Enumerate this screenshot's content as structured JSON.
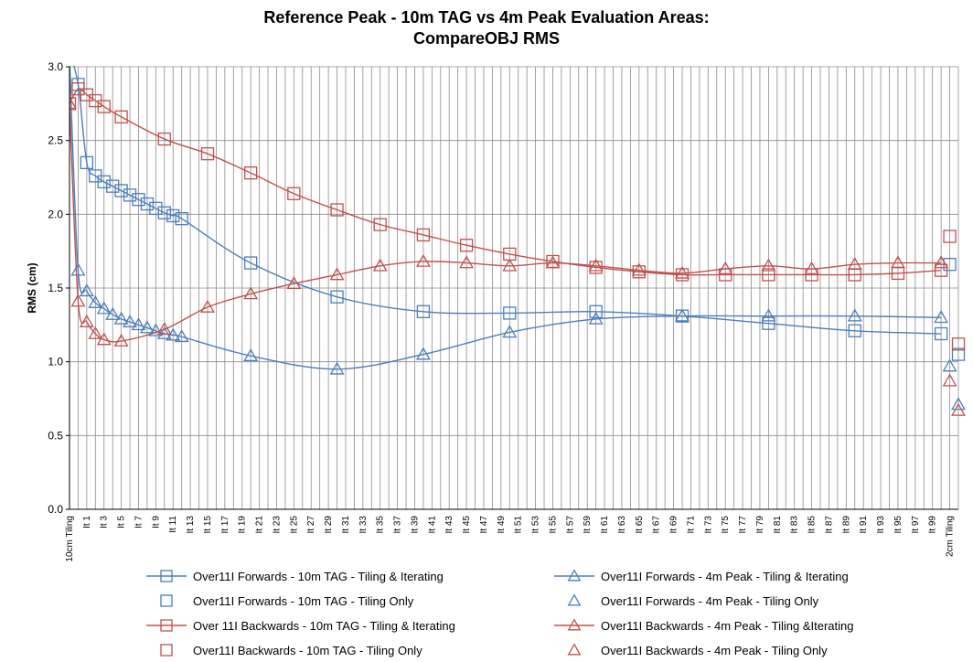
{
  "chart_data": {
    "type": "line",
    "title": "Reference Peak - 10m TAG vs 4m Peak Evaluation Areas:",
    "subtitle": "CompareOBJ RMS",
    "ylabel": "RMS (cm)",
    "ylim": [
      0,
      3
    ],
    "yticks": [
      "0.0",
      "0.5",
      "1.0",
      "1.5",
      "2.0",
      "2.5",
      "3.0"
    ],
    "grid": true,
    "legend_position": "bottom",
    "colors": {
      "blue": "#4a7ebb",
      "red": "#c0504d"
    },
    "categories": [
      "10cm Tiling",
      "It 1",
      "It 3",
      "It 5",
      "It 7",
      "It 9",
      "It 11",
      "It 13",
      "It 15",
      "It 17",
      "It 19",
      "It 21",
      "It 23",
      "It 25",
      "It 27",
      "It 29",
      "It 31",
      "It 33",
      "It 35",
      "It 37",
      "It 39",
      "It 41",
      "It 43",
      "It 45",
      "It 47",
      "It 49",
      "It 51",
      "It 53",
      "It 55",
      "It 57",
      "It 59",
      "It 61",
      "It 63",
      "It 65",
      "It 67",
      "It 69",
      "It 71",
      "It 73",
      "It 75",
      "It 77",
      "It 79",
      "It 81",
      "It 83",
      "It 85",
      "It 87",
      "It 89",
      "It 91",
      "It 93",
      "It 95",
      "It 97",
      "It 99",
      "2cm Tiling"
    ],
    "series": [
      {
        "name": "Over11I Forwards - 10m TAG - Tiling & Iterating",
        "color": "#4a7ebb",
        "marker": "square",
        "line": true,
        "x": [
          -1,
          0,
          1,
          2,
          3,
          4,
          5,
          6,
          7,
          8,
          9,
          10,
          11,
          12,
          20,
          30,
          40,
          50,
          60,
          70,
          80,
          90,
          100
        ],
        "y": [
          3.1,
          2.88,
          2.35,
          2.26,
          2.22,
          2.19,
          2.16,
          2.13,
          2.1,
          2.07,
          2.04,
          2.01,
          1.99,
          1.97,
          1.67,
          1.44,
          1.34,
          1.33,
          1.34,
          1.31,
          1.26,
          1.21,
          1.19
        ]
      },
      {
        "name": "Over11I Forwards - 10m TAG - Tiling Only",
        "color": "#4a7ebb",
        "marker": "square",
        "line": false,
        "x": [
          101,
          102
        ],
        "y": [
          1.66,
          1.05
        ]
      },
      {
        "name": "Over11I Forwards - 4m Peak - Tiling & Iterating",
        "color": "#4a7ebb",
        "marker": "triangle",
        "line": true,
        "x": [
          -1,
          0,
          1,
          2,
          3,
          4,
          5,
          6,
          7,
          8,
          9,
          10,
          11,
          12,
          20,
          30,
          40,
          50,
          60,
          70,
          80,
          90,
          100
        ],
        "y": [
          3.05,
          1.62,
          1.48,
          1.4,
          1.36,
          1.32,
          1.29,
          1.27,
          1.25,
          1.23,
          1.21,
          1.19,
          1.18,
          1.17,
          1.04,
          0.95,
          1.05,
          1.2,
          1.29,
          1.31,
          1.31,
          1.31,
          1.3
        ]
      },
      {
        "name": "Over11I Forwards - 4m Peak - Tiling Only",
        "color": "#4a7ebb",
        "marker": "triangle",
        "line": false,
        "x": [
          101,
          102
        ],
        "y": [
          0.97,
          0.71
        ]
      },
      {
        "name": "Over 11I Backwards - 10m TAG - Tiling & Iterating",
        "color": "#c0504d",
        "marker": "square",
        "line": true,
        "x": [
          -1,
          0,
          1,
          2,
          3,
          5,
          10,
          15,
          20,
          25,
          30,
          35,
          40,
          45,
          50,
          55,
          60,
          65,
          70,
          75,
          80,
          85,
          90,
          95,
          100
        ],
        "y": [
          2.75,
          2.85,
          2.81,
          2.77,
          2.73,
          2.66,
          2.51,
          2.41,
          2.28,
          2.14,
          2.03,
          1.93,
          1.86,
          1.79,
          1.73,
          1.68,
          1.64,
          1.61,
          1.59,
          1.59,
          1.59,
          1.59,
          1.59,
          1.6,
          1.62
        ]
      },
      {
        "name": "Over11I Backwards - 10m TAG - Tiling Only",
        "color": "#c0504d",
        "marker": "square",
        "line": false,
        "x": [
          101,
          102
        ],
        "y": [
          1.85,
          1.12
        ]
      },
      {
        "name": "Over11I Backwards - 4m Peak - Tiling &Iterating",
        "color": "#c0504d",
        "marker": "triangle",
        "line": true,
        "x": [
          -1,
          0,
          1,
          2,
          3,
          5,
          10,
          15,
          20,
          25,
          30,
          35,
          40,
          45,
          50,
          55,
          60,
          65,
          70,
          75,
          80,
          85,
          90,
          95,
          100
        ],
        "y": [
          2.75,
          1.41,
          1.27,
          1.19,
          1.15,
          1.14,
          1.22,
          1.37,
          1.46,
          1.53,
          1.59,
          1.65,
          1.68,
          1.67,
          1.65,
          1.67,
          1.65,
          1.62,
          1.6,
          1.63,
          1.65,
          1.63,
          1.66,
          1.67,
          1.67
        ]
      },
      {
        "name": "Over11I Backwards - 4m Peak - Tiling Only",
        "color": "#c0504d",
        "marker": "triangle",
        "line": false,
        "x": [
          101,
          102
        ],
        "y": [
          0.87,
          0.67
        ]
      }
    ]
  }
}
